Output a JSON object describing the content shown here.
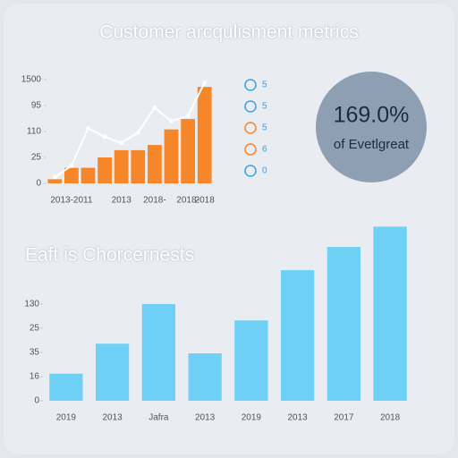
{
  "chart_data": [
    {
      "type": "bar",
      "title": "Customer arcqulisment metrics",
      "categories": [
        null,
        "2013-2011",
        null,
        null,
        "2013",
        null,
        "2018-",
        null,
        "2018-",
        "2018"
      ],
      "series": [
        {
          "type": "bar",
          "color": "#f5862a",
          "values": [
            4,
            15,
            15,
            25,
            32,
            32,
            37,
            52,
            62,
            93
          ]
        },
        {
          "type": "line",
          "color": "#ffffff",
          "values": [
            6,
            17,
            53,
            45,
            39,
            49,
            73,
            60,
            65,
            97
          ]
        }
      ],
      "ylim": [
        0,
        100
      ],
      "yticks": [
        0,
        25,
        {
          "value": 50,
          "label": "110"
        },
        {
          "value": 75,
          "label": "95"
        },
        {
          "value": 100,
          "label": "1500"
        }
      ],
      "legend": [
        {
          "label": "5",
          "color": "#3aa0e6"
        },
        {
          "label": "5",
          "color": "#3aa0e6"
        },
        {
          "label": "5",
          "color": "#f5862a"
        },
        {
          "label": "6",
          "color": "#f5862a"
        },
        {
          "label": "0",
          "color": "#3aa0e6"
        }
      ]
    },
    {
      "type": "bar",
      "title": "Eaft is Chorcernests",
      "categories": [
        "2019",
        "2013",
        "Jafra",
        "2013",
        "2019",
        "2013",
        "2017",
        "2018"
      ],
      "series": [
        {
          "type": "bar",
          "color": "#6fd0f6",
          "values": [
            28,
            59,
            100,
            49,
            83,
            135,
            159,
            180
          ]
        }
      ],
      "ylim": [
        0,
        185
      ],
      "yticks": [
        0,
        {
          "value": 25,
          "label": "16"
        },
        {
          "value": 50,
          "label": "35"
        },
        {
          "value": 75,
          "label": "25"
        },
        {
          "value": 100,
          "label": "130"
        }
      ]
    }
  ],
  "stat": {
    "value": "169.0%",
    "label": "of Evetlgreat"
  }
}
